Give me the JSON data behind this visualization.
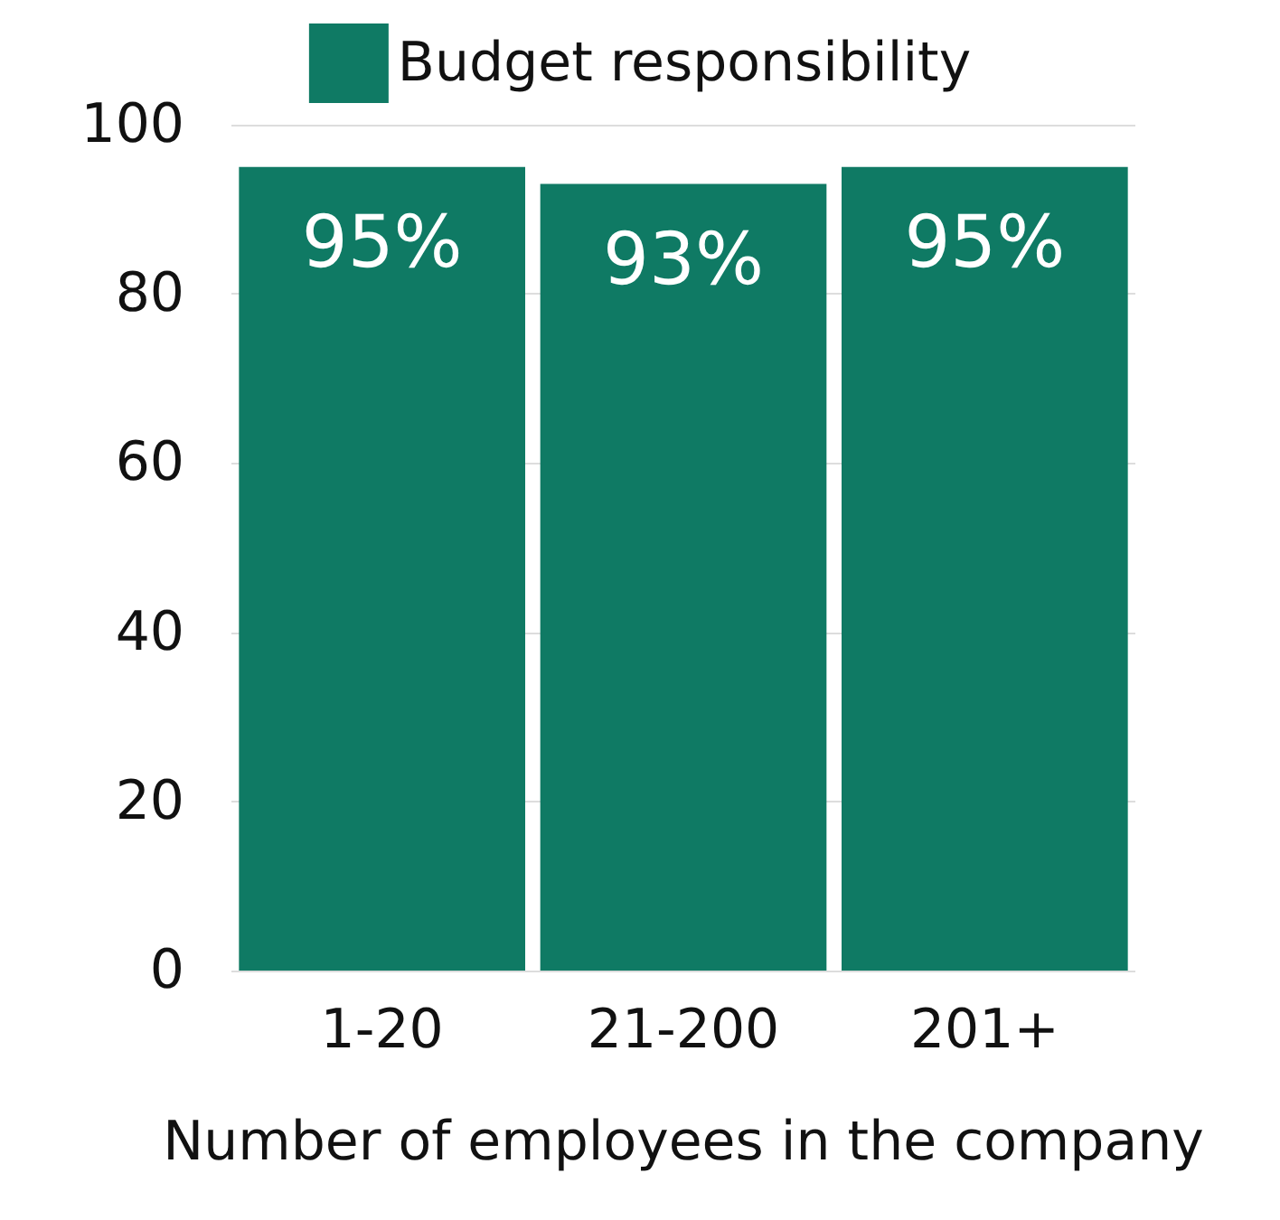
{
  "chart_data": {
    "type": "bar",
    "xlabel": "Number of employees in the company",
    "categories": [
      "1-20",
      "21-200",
      "201+"
    ],
    "series": [
      {
        "name": "Budget responsibility",
        "color": "#0f7a64",
        "values": [
          95,
          93,
          95
        ],
        "value_labels": [
          "95%",
          "93%",
          "95%"
        ]
      }
    ],
    "ylim": [
      0,
      100
    ],
    "yticks": [
      0,
      20,
      40,
      60,
      80,
      100
    ],
    "grid": "y",
    "legend": "top"
  }
}
